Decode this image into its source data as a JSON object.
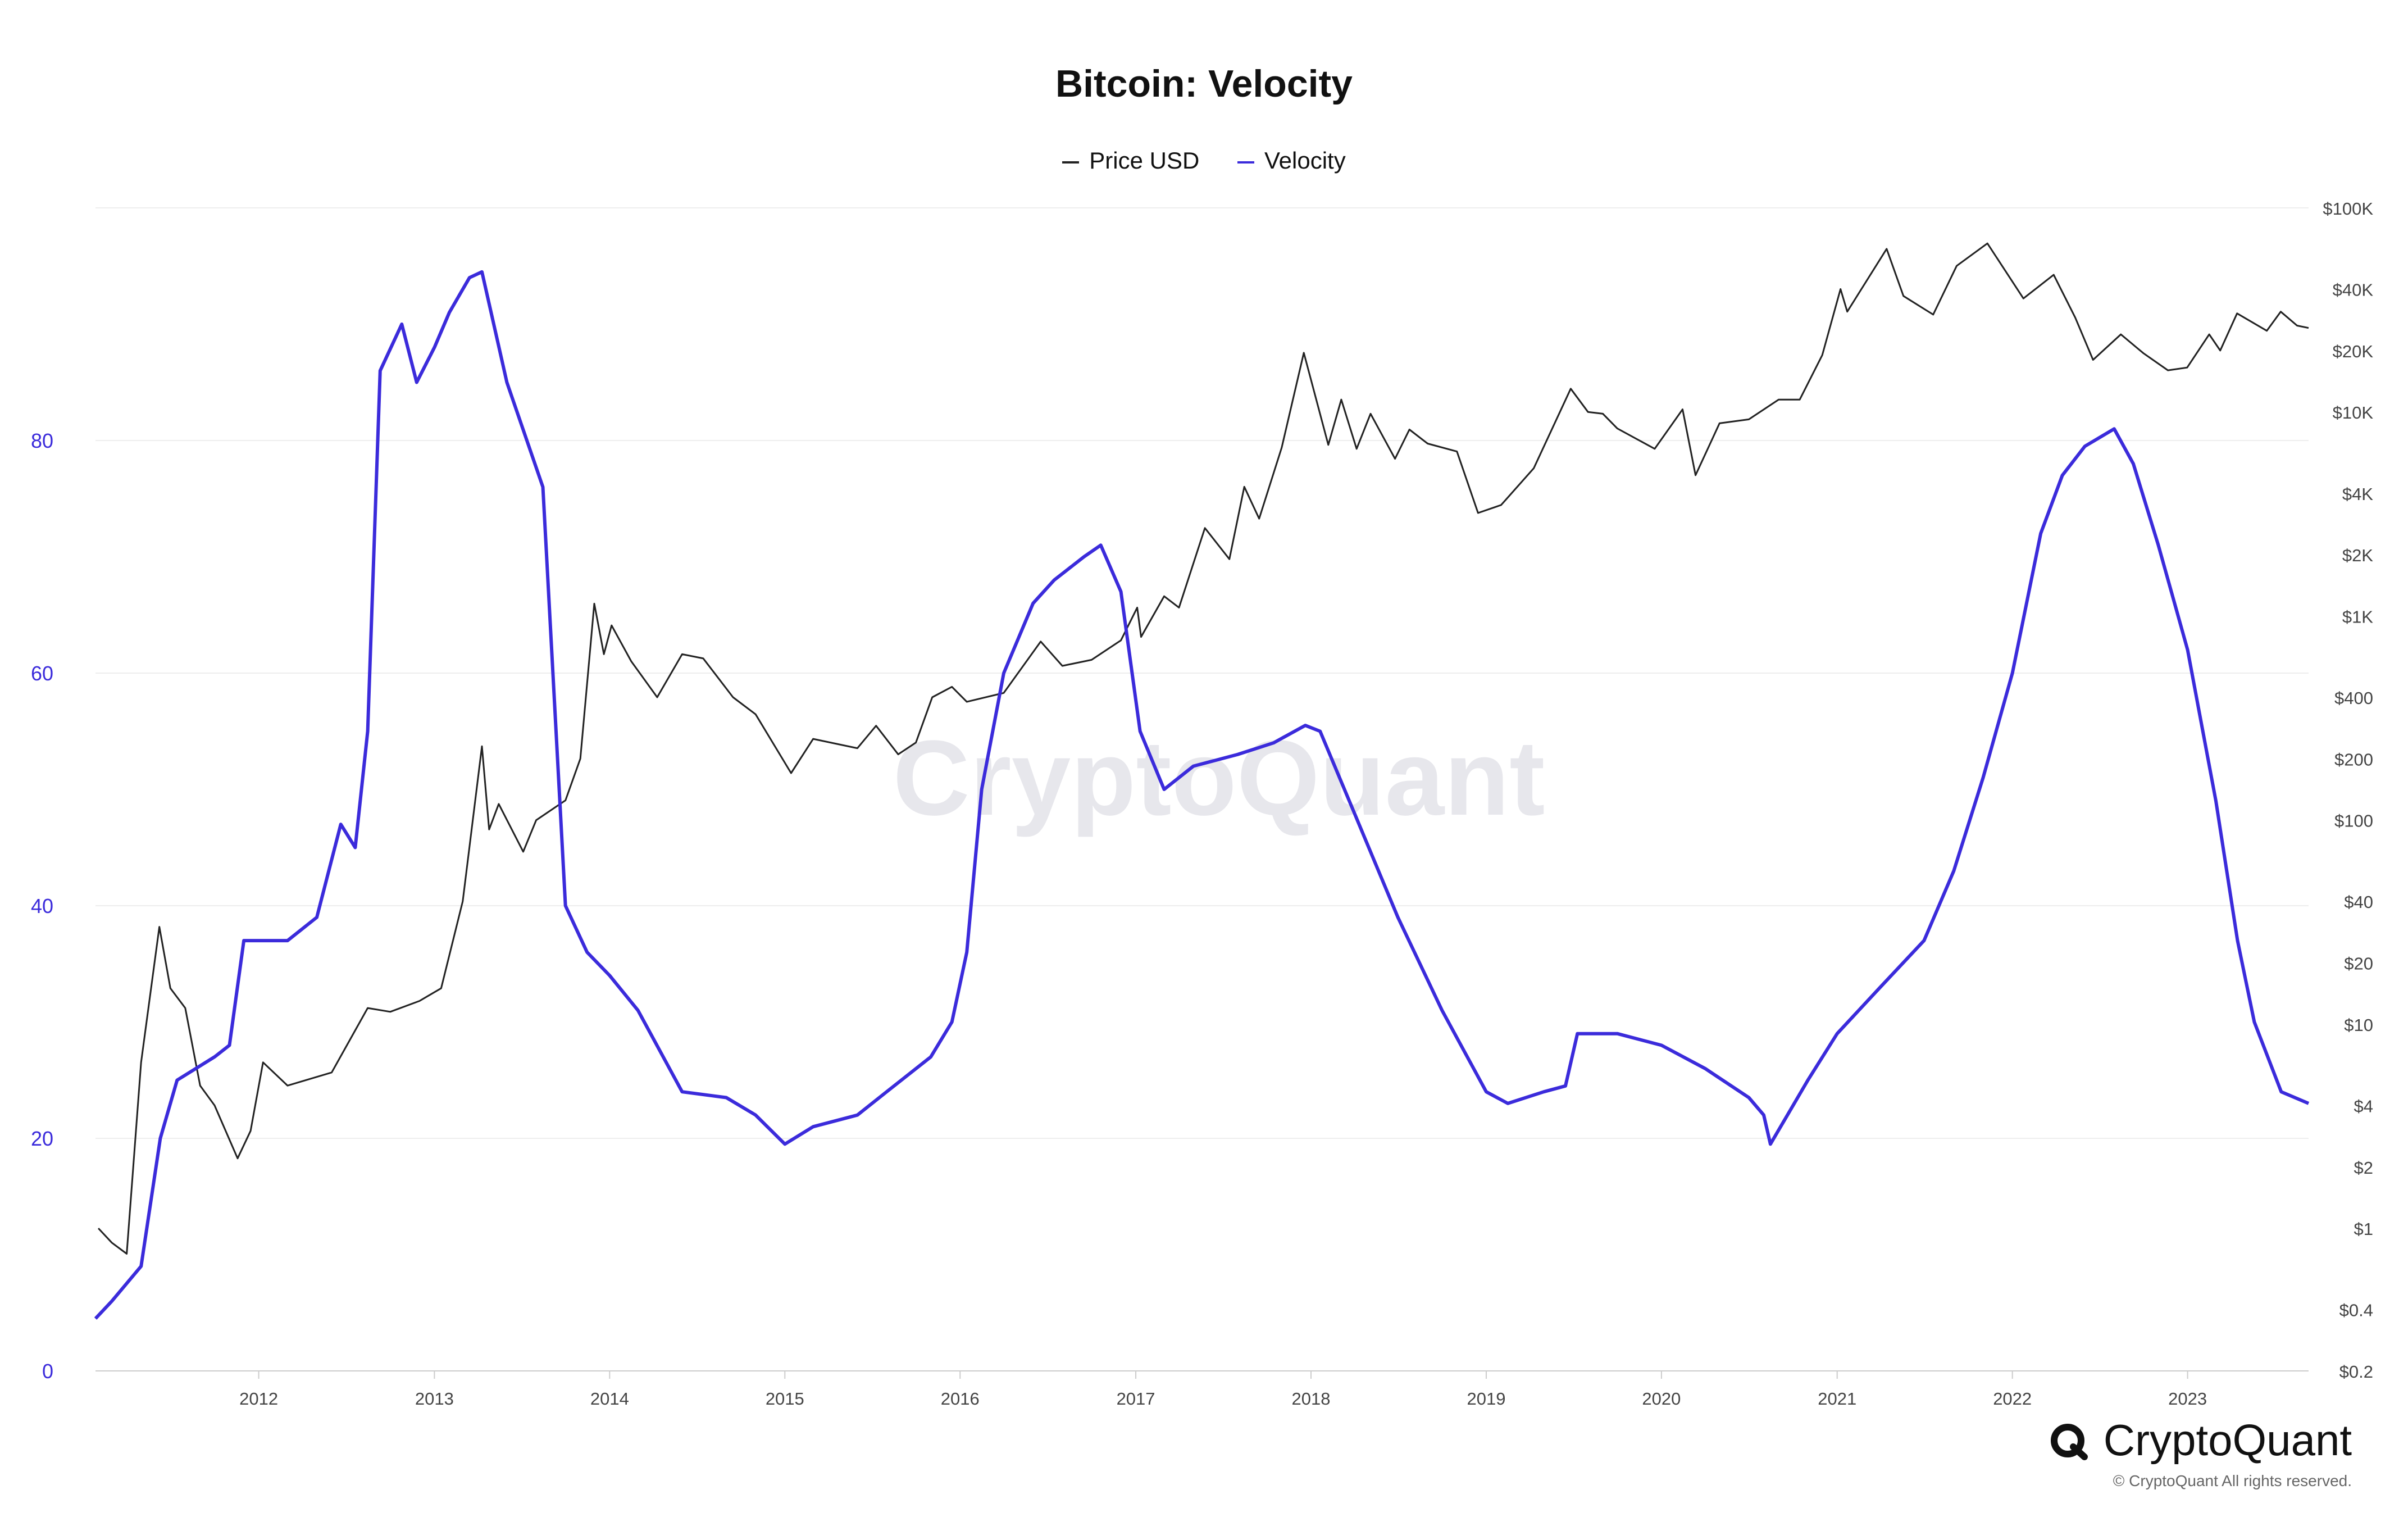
{
  "title": "Bitcoin: Velocity",
  "legend": [
    {
      "label": "Price USD",
      "color": "#222222"
    },
    {
      "label": "Velocity",
      "color": "#3b2bdb"
    }
  ],
  "watermark": "CryptoQuant",
  "brand": {
    "logo_text": "CryptoQuant",
    "copyright": "© CryptoQuant All rights reserved."
  },
  "chart_data": {
    "type": "line",
    "title": "Bitcoin: Velocity",
    "x_ticks": [
      "2012",
      "2013",
      "2014",
      "2015",
      "2016",
      "2017",
      "2018",
      "2019",
      "2020",
      "2021",
      "2022",
      "2023"
    ],
    "x_range": [
      "2011-01-26",
      "2023-09-10"
    ],
    "left_axis": {
      "ticks": [
        0,
        20,
        40,
        60,
        80
      ],
      "range": [
        0,
        100
      ],
      "color": "#3b2bdb"
    },
    "right_axis": {
      "scale": "log",
      "ticks": [
        {
          "label": "$0.2",
          "value": 0.2
        },
        {
          "label": "$0.4",
          "value": 0.4
        },
        {
          "label": "$1",
          "value": 1
        },
        {
          "label": "$2",
          "value": 2
        },
        {
          "label": "$4",
          "value": 4
        },
        {
          "label": "$10",
          "value": 10
        },
        {
          "label": "$20",
          "value": 20
        },
        {
          "label": "$40",
          "value": 40
        },
        {
          "label": "$100",
          "value": 100
        },
        {
          "label": "$200",
          "value": 200
        },
        {
          "label": "$400",
          "value": 400
        },
        {
          "label": "$1K",
          "value": 1000
        },
        {
          "label": "$2K",
          "value": 2000
        },
        {
          "label": "$4K",
          "value": 4000
        },
        {
          "label": "$10K",
          "value": 10000
        },
        {
          "label": "$20K",
          "value": 20000
        },
        {
          "label": "$40K",
          "value": 40000
        },
        {
          "label": "$100K",
          "value": 100000
        }
      ],
      "range": [
        0.2,
        100000
      ]
    },
    "grid": true,
    "legend_position": "top-center",
    "series": [
      {
        "name": "Price USD",
        "axis": "right",
        "color": "#222222",
        "points": [
          [
            "2011-02-01",
            1.0
          ],
          [
            "2011-03-01",
            0.85
          ],
          [
            "2011-04-01",
            0.75
          ],
          [
            "2011-05-01",
            6.5
          ],
          [
            "2011-06-08",
            30
          ],
          [
            "2011-07-01",
            15
          ],
          [
            "2011-08-01",
            12
          ],
          [
            "2011-09-01",
            5
          ],
          [
            "2011-10-01",
            4
          ],
          [
            "2011-11-18",
            2.2
          ],
          [
            "2011-12-15",
            3
          ],
          [
            "2012-01-10",
            6.5
          ],
          [
            "2012-03-01",
            5
          ],
          [
            "2012-06-01",
            5.8
          ],
          [
            "2012-08-15",
            12
          ],
          [
            "2012-10-01",
            11.5
          ],
          [
            "2012-12-01",
            13
          ],
          [
            "2013-01-15",
            15
          ],
          [
            "2013-03-01",
            40
          ],
          [
            "2013-04-10",
            230
          ],
          [
            "2013-04-25",
            90
          ],
          [
            "2013-05-15",
            120
          ],
          [
            "2013-07-05",
            70
          ],
          [
            "2013-08-01",
            100
          ],
          [
            "2013-10-01",
            125
          ],
          [
            "2013-11-01",
            200
          ],
          [
            "2013-11-30",
            1150
          ],
          [
            "2013-12-20",
            650
          ],
          [
            "2014-01-05",
            900
          ],
          [
            "2014-02-15",
            600
          ],
          [
            "2014-04-10",
            400
          ],
          [
            "2014-06-01",
            650
          ],
          [
            "2014-07-15",
            620
          ],
          [
            "2014-09-15",
            400
          ],
          [
            "2014-11-01",
            330
          ],
          [
            "2015-01-14",
            170
          ],
          [
            "2015-03-01",
            250
          ],
          [
            "2015-06-01",
            225
          ],
          [
            "2015-07-10",
            290
          ],
          [
            "2015-08-25",
            210
          ],
          [
            "2015-10-01",
            240
          ],
          [
            "2015-11-04",
            400
          ],
          [
            "2015-12-15",
            450
          ],
          [
            "2016-01-15",
            380
          ],
          [
            "2016-04-01",
            420
          ],
          [
            "2016-06-17",
            750
          ],
          [
            "2016-08-01",
            570
          ],
          [
            "2016-10-01",
            610
          ],
          [
            "2016-12-01",
            760
          ],
          [
            "2017-01-04",
            1100
          ],
          [
            "2017-01-12",
            790
          ],
          [
            "2017-03-01",
            1250
          ],
          [
            "2017-04-01",
            1100
          ],
          [
            "2017-05-25",
            2700
          ],
          [
            "2017-07-15",
            1900
          ],
          [
            "2017-08-15",
            4300
          ],
          [
            "2017-09-15",
            3000
          ],
          [
            "2017-11-01",
            6700
          ],
          [
            "2017-12-17",
            19500
          ],
          [
            "2018-02-06",
            6900
          ],
          [
            "2018-03-05",
            11500
          ],
          [
            "2018-04-06",
            6600
          ],
          [
            "2018-05-05",
            9800
          ],
          [
            "2018-06-25",
            5900
          ],
          [
            "2018-07-25",
            8200
          ],
          [
            "2018-09-01",
            7000
          ],
          [
            "2018-11-01",
            6400
          ],
          [
            "2018-12-15",
            3200
          ],
          [
            "2019-02-01",
            3500
          ],
          [
            "2019-04-10",
            5300
          ],
          [
            "2019-06-26",
            13000
          ],
          [
            "2019-08-01",
            10000
          ],
          [
            "2019-09-01",
            9800
          ],
          [
            "2019-10-01",
            8300
          ],
          [
            "2019-12-18",
            6600
          ],
          [
            "2020-02-14",
            10300
          ],
          [
            "2020-03-12",
            4900
          ],
          [
            "2020-05-01",
            8800
          ],
          [
            "2020-07-01",
            9200
          ],
          [
            "2020-09-01",
            11500
          ],
          [
            "2020-10-15",
            11500
          ],
          [
            "2020-12-01",
            19000
          ],
          [
            "2021-01-08",
            40000
          ],
          [
            "2021-01-22",
            31000
          ],
          [
            "2021-04-14",
            63000
          ],
          [
            "2021-05-19",
            37000
          ],
          [
            "2021-07-20",
            30000
          ],
          [
            "2021-09-07",
            52000
          ],
          [
            "2021-11-10",
            67000
          ],
          [
            "2022-01-24",
            36000
          ],
          [
            "2022-03-28",
            47000
          ],
          [
            "2022-05-12",
            29000
          ],
          [
            "2022-06-18",
            18000
          ],
          [
            "2022-08-15",
            24000
          ],
          [
            "2022-10-01",
            19400
          ],
          [
            "2022-11-21",
            16000
          ],
          [
            "2022-12-31",
            16500
          ],
          [
            "2023-02-15",
            24000
          ],
          [
            "2023-03-10",
            20000
          ],
          [
            "2023-04-14",
            30400
          ],
          [
            "2023-06-15",
            25000
          ],
          [
            "2023-07-14",
            31000
          ],
          [
            "2023-08-17",
            26500
          ],
          [
            "2023-09-10",
            25800
          ]
        ]
      },
      {
        "name": "Velocity",
        "axis": "left",
        "color": "#3b2bdb",
        "points": [
          [
            "2011-01-26",
            4.5
          ],
          [
            "2011-03-01",
            6
          ],
          [
            "2011-05-01",
            9
          ],
          [
            "2011-06-10",
            20
          ],
          [
            "2011-07-15",
            25
          ],
          [
            "2011-10-01",
            27
          ],
          [
            "2011-11-01",
            28
          ],
          [
            "2011-12-01",
            37
          ],
          [
            "2012-03-01",
            37
          ],
          [
            "2012-05-01",
            39
          ],
          [
            "2012-06-20",
            47
          ],
          [
            "2012-07-20",
            45
          ],
          [
            "2012-08-15",
            55
          ],
          [
            "2012-09-10",
            86
          ],
          [
            "2012-10-25",
            90
          ],
          [
            "2012-11-25",
            85
          ],
          [
            "2013-01-01",
            88
          ],
          [
            "2013-02-01",
            91
          ],
          [
            "2013-03-15",
            94
          ],
          [
            "2013-04-10",
            94.5
          ],
          [
            "2013-06-01",
            85
          ],
          [
            "2013-08-15",
            76
          ],
          [
            "2013-10-01",
            40
          ],
          [
            "2013-11-15",
            36
          ],
          [
            "2014-01-01",
            34
          ],
          [
            "2014-03-01",
            31
          ],
          [
            "2014-06-01",
            24
          ],
          [
            "2014-09-01",
            23.5
          ],
          [
            "2014-11-01",
            22
          ],
          [
            "2015-01-01",
            19.5
          ],
          [
            "2015-03-01",
            21
          ],
          [
            "2015-06-01",
            22
          ],
          [
            "2015-08-01",
            24
          ],
          [
            "2015-11-01",
            27
          ],
          [
            "2015-12-15",
            30
          ],
          [
            "2016-01-15",
            36
          ],
          [
            "2016-02-15",
            50
          ],
          [
            "2016-04-01",
            60
          ],
          [
            "2016-06-01",
            66
          ],
          [
            "2016-07-15",
            68
          ],
          [
            "2016-09-15",
            70
          ],
          [
            "2016-10-20",
            71
          ],
          [
            "2016-12-01",
            67
          ],
          [
            "2017-01-10",
            55
          ],
          [
            "2017-03-01",
            50
          ],
          [
            "2017-05-01",
            52
          ],
          [
            "2017-08-01",
            53
          ],
          [
            "2017-10-15",
            54
          ],
          [
            "2017-12-20",
            55.5
          ],
          [
            "2018-01-20",
            55
          ],
          [
            "2018-04-01",
            48
          ],
          [
            "2018-07-01",
            39
          ],
          [
            "2018-10-01",
            31
          ],
          [
            "2019-01-01",
            24
          ],
          [
            "2019-02-15",
            23
          ],
          [
            "2019-05-01",
            24
          ],
          [
            "2019-06-15",
            24.5
          ],
          [
            "2019-07-10",
            29
          ],
          [
            "2019-10-01",
            29
          ],
          [
            "2020-01-01",
            28
          ],
          [
            "2020-04-01",
            26
          ],
          [
            "2020-07-01",
            23.5
          ],
          [
            "2020-08-01",
            22
          ],
          [
            "2020-08-15",
            19.5
          ],
          [
            "2020-11-01",
            25
          ],
          [
            "2021-01-01",
            29
          ],
          [
            "2021-04-01",
            33
          ],
          [
            "2021-07-01",
            37
          ],
          [
            "2021-09-01",
            43
          ],
          [
            "2021-11-01",
            51
          ],
          [
            "2022-01-01",
            60
          ],
          [
            "2022-03-01",
            72
          ],
          [
            "2022-04-15",
            77
          ],
          [
            "2022-06-01",
            79.5
          ],
          [
            "2022-08-01",
            81
          ],
          [
            "2022-09-10",
            78
          ],
          [
            "2022-11-01",
            71
          ],
          [
            "2023-01-01",
            62
          ],
          [
            "2023-03-01",
            49
          ],
          [
            "2023-04-15",
            37
          ],
          [
            "2023-05-20",
            30
          ],
          [
            "2023-07-15",
            24
          ],
          [
            "2023-09-10",
            23
          ]
        ]
      }
    ]
  }
}
